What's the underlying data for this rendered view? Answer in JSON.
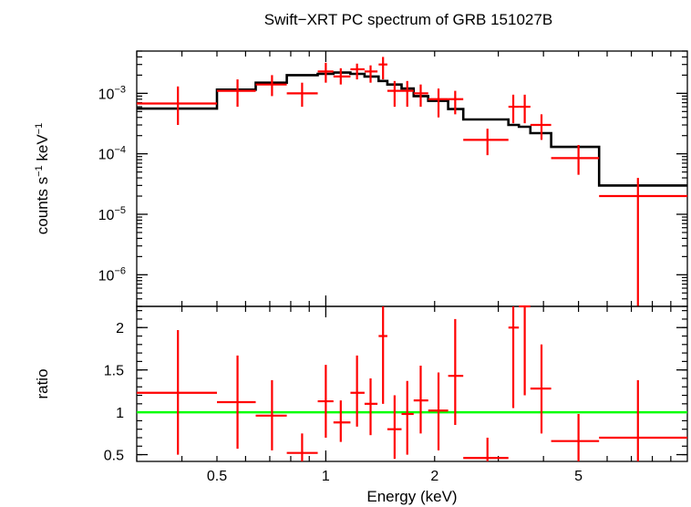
{
  "chart_data": [
    {
      "panel": "spectrum",
      "type": "scatter",
      "title": "Swift−XRT PC spectrum of GRB 151027B",
      "ylabel_parts": {
        "a": "counts s",
        "a_exp": "−1",
        "b": " keV",
        "b_exp": "−1"
      },
      "yscale": "log",
      "xscale": "log",
      "xlim": [
        0.3,
        10
      ],
      "ylim": [
        3e-07,
        0.005
      ],
      "y_ticks": [
        {
          "value": 1e-06,
          "base": "10",
          "exp": "−6"
        },
        {
          "value": 1e-05,
          "base": "10",
          "exp": "−5"
        },
        {
          "value": 0.0001,
          "base": "10",
          "exp": "−4"
        },
        {
          "value": 0.001,
          "base": "10",
          "exp": "−3"
        }
      ],
      "data_series": {
        "color": "#ff0000",
        "points": [
          {
            "x": 0.39,
            "xlo": 0.3,
            "xhi": 0.5,
            "y": 0.00068,
            "ylo": 0.0003,
            "yhi": 0.0013
          },
          {
            "x": 0.57,
            "xlo": 0.5,
            "xhi": 0.64,
            "y": 0.0011,
            "ylo": 0.0006,
            "yhi": 0.0017
          },
          {
            "x": 0.71,
            "xlo": 0.64,
            "xhi": 0.78,
            "y": 0.0014,
            "ylo": 0.0009,
            "yhi": 0.002
          },
          {
            "x": 0.86,
            "xlo": 0.78,
            "xhi": 0.95,
            "y": 0.001,
            "ylo": 0.0006,
            "yhi": 0.0015
          },
          {
            "x": 1.0,
            "xlo": 0.95,
            "xhi": 1.05,
            "y": 0.0023,
            "ylo": 0.0015,
            "yhi": 0.0032
          },
          {
            "x": 1.1,
            "xlo": 1.05,
            "xhi": 1.17,
            "y": 0.0019,
            "ylo": 0.0014,
            "yhi": 0.0026
          },
          {
            "x": 1.22,
            "xlo": 1.17,
            "xhi": 1.28,
            "y": 0.0025,
            "ylo": 0.0017,
            "yhi": 0.0031
          },
          {
            "x": 1.33,
            "xlo": 1.28,
            "xhi": 1.39,
            "y": 0.0023,
            "ylo": 0.0015,
            "yhi": 0.0029
          },
          {
            "x": 1.44,
            "xlo": 1.4,
            "xhi": 1.48,
            "y": 0.003,
            "ylo": 0.0017,
            "yhi": 0.004
          },
          {
            "x": 1.55,
            "xlo": 1.48,
            "xhi": 1.62,
            "y": 0.0011,
            "ylo": 0.0006,
            "yhi": 0.0016
          },
          {
            "x": 1.68,
            "xlo": 1.62,
            "xhi": 1.75,
            "y": 0.0011,
            "ylo": 0.0006,
            "yhi": 0.0016
          },
          {
            "x": 1.83,
            "xlo": 1.75,
            "xhi": 1.92,
            "y": 0.001,
            "ylo": 0.0006,
            "yhi": 0.0014
          },
          {
            "x": 2.05,
            "xlo": 1.92,
            "xhi": 2.18,
            "y": 0.0008,
            "ylo": 0.0004,
            "yhi": 0.0012
          },
          {
            "x": 2.28,
            "xlo": 2.18,
            "xhi": 2.4,
            "y": 0.0008,
            "ylo": 0.00045,
            "yhi": 0.0011
          },
          {
            "x": 2.8,
            "xlo": 2.4,
            "xhi": 3.2,
            "y": 0.00017,
            "ylo": 9.5e-05,
            "yhi": 0.00026
          },
          {
            "x": 3.3,
            "xlo": 3.2,
            "xhi": 3.42,
            "y": 0.0006,
            "ylo": 0.00032,
            "yhi": 0.00095
          },
          {
            "x": 3.55,
            "xlo": 3.42,
            "xhi": 3.68,
            "y": 0.0006,
            "ylo": 0.00032,
            "yhi": 0.00095
          },
          {
            "x": 3.95,
            "xlo": 3.68,
            "xhi": 4.2,
            "y": 0.0003,
            "ylo": 0.00017,
            "yhi": 0.00045
          },
          {
            "x": 5.0,
            "xlo": 4.2,
            "xhi": 5.7,
            "y": 8.5e-05,
            "ylo": 4.5e-05,
            "yhi": 0.00014
          },
          {
            "x": 7.3,
            "xlo": 5.7,
            "xhi": 10.0,
            "y": 2e-05,
            "ylo": 3e-07,
            "yhi": 4e-05
          }
        ]
      },
      "model_series": {
        "color": "#000000",
        "steps": [
          {
            "xlo": 0.3,
            "xhi": 0.5,
            "y": 0.00056
          },
          {
            "xlo": 0.5,
            "xhi": 0.64,
            "y": 0.00115
          },
          {
            "xlo": 0.64,
            "xhi": 0.78,
            "y": 0.0015
          },
          {
            "xlo": 0.78,
            "xhi": 0.95,
            "y": 0.002
          },
          {
            "xlo": 0.95,
            "xhi": 1.05,
            "y": 0.0021
          },
          {
            "xlo": 1.05,
            "xhi": 1.17,
            "y": 0.0022
          },
          {
            "xlo": 1.17,
            "xhi": 1.28,
            "y": 0.0021
          },
          {
            "xlo": 1.28,
            "xhi": 1.4,
            "y": 0.0019
          },
          {
            "xlo": 1.4,
            "xhi": 1.48,
            "y": 0.0016
          },
          {
            "xlo": 1.48,
            "xhi": 1.62,
            "y": 0.0014
          },
          {
            "xlo": 1.62,
            "xhi": 1.75,
            "y": 0.0012
          },
          {
            "xlo": 1.75,
            "xhi": 1.92,
            "y": 0.0009
          },
          {
            "xlo": 1.92,
            "xhi": 2.18,
            "y": 0.00075
          },
          {
            "xlo": 2.18,
            "xhi": 2.4,
            "y": 0.00055
          },
          {
            "xlo": 2.4,
            "xhi": 3.2,
            "y": 0.00037
          },
          {
            "xlo": 3.2,
            "xhi": 3.42,
            "y": 0.0003
          },
          {
            "xlo": 3.42,
            "xhi": 3.68,
            "y": 0.00028
          },
          {
            "xlo": 3.68,
            "xhi": 4.2,
            "y": 0.00022
          },
          {
            "xlo": 4.2,
            "xhi": 5.7,
            "y": 0.00013
          },
          {
            "xlo": 5.7,
            "xhi": 10.0,
            "y": 3e-05
          }
        ]
      }
    },
    {
      "panel": "ratio",
      "type": "scatter",
      "xlabel": "Energy (keV)",
      "ylabel": "ratio",
      "xscale": "log",
      "xlim": [
        0.3,
        10
      ],
      "ylim": [
        0.42,
        2.25
      ],
      "x_ticks": [
        {
          "value": 0.5,
          "label": "0.5"
        },
        {
          "value": 1,
          "label": "1"
        },
        {
          "value": 2,
          "label": "2"
        },
        {
          "value": 5,
          "label": "5"
        }
      ],
      "y_ticks": [
        {
          "value": 0.5,
          "label": "0.5"
        },
        {
          "value": 1,
          "label": "1"
        },
        {
          "value": 1.5,
          "label": "1.5"
        },
        {
          "value": 2,
          "label": "2"
        }
      ],
      "reference_line": {
        "y": 1,
        "color": "#00ff00"
      },
      "data_series": {
        "color": "#ff0000",
        "points": [
          {
            "x": 0.39,
            "xlo": 0.3,
            "xhi": 0.5,
            "y": 1.23,
            "ylo": 0.5,
            "yhi": 1.97
          },
          {
            "x": 0.57,
            "xlo": 0.5,
            "xhi": 0.64,
            "y": 1.12,
            "ylo": 0.57,
            "yhi": 1.67
          },
          {
            "x": 0.71,
            "xlo": 0.64,
            "xhi": 0.78,
            "y": 0.96,
            "ylo": 0.55,
            "yhi": 1.38
          },
          {
            "x": 0.86,
            "xlo": 0.78,
            "xhi": 0.95,
            "y": 0.52,
            "ylo": 0.42,
            "yhi": 0.75
          },
          {
            "x": 1.0,
            "xlo": 0.95,
            "xhi": 1.05,
            "y": 1.13,
            "ylo": 0.7,
            "yhi": 1.56
          },
          {
            "x": 1.1,
            "xlo": 1.05,
            "xhi": 1.17,
            "y": 0.88,
            "ylo": 0.65,
            "yhi": 1.14
          },
          {
            "x": 1.22,
            "xlo": 1.17,
            "xhi": 1.28,
            "y": 1.23,
            "ylo": 0.83,
            "yhi": 1.67
          },
          {
            "x": 1.33,
            "xlo": 1.28,
            "xhi": 1.39,
            "y": 1.1,
            "ylo": 0.73,
            "yhi": 1.4
          },
          {
            "x": 1.44,
            "xlo": 1.4,
            "xhi": 1.48,
            "y": 1.9,
            "ylo": 1.1,
            "yhi": 2.3
          },
          {
            "x": 1.55,
            "xlo": 1.48,
            "xhi": 1.62,
            "y": 0.8,
            "ylo": 0.45,
            "yhi": 1.2
          },
          {
            "x": 1.68,
            "xlo": 1.62,
            "xhi": 1.75,
            "y": 0.98,
            "ylo": 0.5,
            "yhi": 1.37
          },
          {
            "x": 1.83,
            "xlo": 1.75,
            "xhi": 1.92,
            "y": 1.14,
            "ylo": 0.75,
            "yhi": 1.55
          },
          {
            "x": 2.05,
            "xlo": 1.92,
            "xhi": 2.18,
            "y": 1.02,
            "ylo": 0.55,
            "yhi": 1.47
          },
          {
            "x": 2.28,
            "xlo": 2.18,
            "xhi": 2.4,
            "y": 1.43,
            "ylo": 0.85,
            "yhi": 2.1
          },
          {
            "x": 2.8,
            "xlo": 2.4,
            "xhi": 3.2,
            "y": 0.46,
            "ylo": 0.42,
            "yhi": 0.7
          },
          {
            "x": 3.3,
            "xlo": 3.2,
            "xhi": 3.42,
            "y": 2.0,
            "ylo": 1.05,
            "yhi": 2.3
          },
          {
            "x": 3.55,
            "xlo": 3.42,
            "xhi": 3.68,
            "y": 2.25,
            "ylo": 1.2,
            "yhi": 2.3
          },
          {
            "x": 3.95,
            "xlo": 3.68,
            "xhi": 4.2,
            "y": 1.28,
            "ylo": 0.75,
            "yhi": 1.8
          },
          {
            "x": 5.0,
            "xlo": 4.2,
            "xhi": 5.7,
            "y": 0.66,
            "ylo": 0.42,
            "yhi": 0.98
          },
          {
            "x": 7.3,
            "xlo": 5.7,
            "xhi": 10.0,
            "y": 0.7,
            "ylo": 0.42,
            "yhi": 1.38
          }
        ]
      }
    }
  ]
}
